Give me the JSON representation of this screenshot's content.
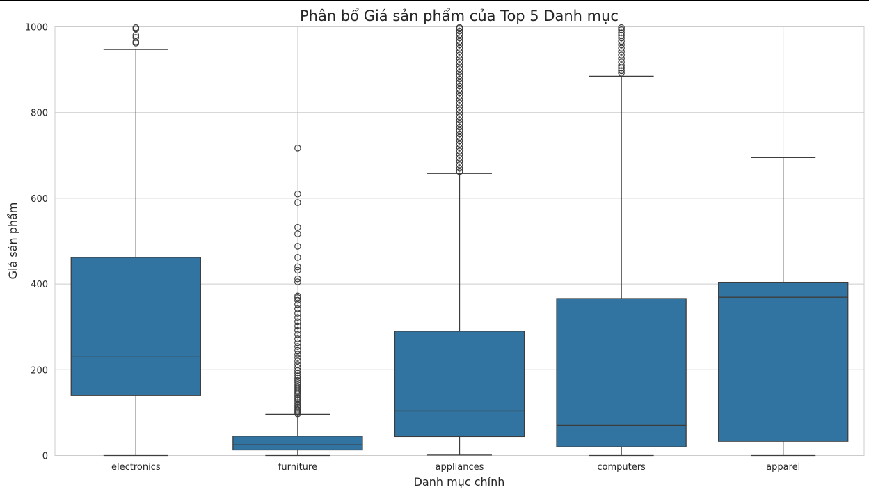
{
  "chart_data": {
    "type": "box",
    "title": "Phân bổ Giá sản phẩm của Top 5 Danh mục",
    "xlabel": "Danh mục chính",
    "ylabel": "Giá sản phẩm",
    "ylim": [
      0,
      1000
    ],
    "yticks": [
      0,
      200,
      400,
      600,
      800,
      1000
    ],
    "grid": true,
    "box_color": "#3274a1",
    "line_color": "#3d3d3d",
    "categories": [
      "electronics",
      "furniture",
      "appliances",
      "computers",
      "apparel"
    ],
    "boxes": [
      {
        "category": "electronics",
        "whisker_low": 0,
        "q1": 140,
        "median": 232,
        "q3": 462,
        "whisker_high": 947,
        "outliers": [
          962,
          965,
          975,
          980,
          995,
          998
        ]
      },
      {
        "category": "furniture",
        "whisker_low": 0,
        "q1": 13,
        "median": 25,
        "q3": 45,
        "whisker_high": 96,
        "outliers": [
          97,
          100,
          103,
          106,
          110,
          113,
          117,
          121,
          125,
          129,
          133,
          137,
          141,
          145,
          150,
          155,
          160,
          165,
          170,
          175,
          180,
          186,
          192,
          198,
          205,
          212,
          220,
          228,
          236,
          245,
          254,
          263,
          272,
          282,
          292,
          302,
          312,
          322,
          332,
          342,
          352,
          362,
          368,
          372,
          405,
          412,
          432,
          440,
          462,
          488,
          517,
          532,
          590,
          610,
          717
        ]
      },
      {
        "category": "appliances",
        "whisker_low": 1,
        "q1": 44,
        "median": 104,
        "q3": 290,
        "whisker_high": 658,
        "outliers": [
          662,
          670,
          678,
          686,
          694,
          702,
          710,
          718,
          726,
          734,
          742,
          750,
          758,
          766,
          774,
          782,
          790,
          798,
          806,
          814,
          822,
          830,
          838,
          846,
          854,
          862,
          870,
          878,
          886,
          894,
          902,
          910,
          918,
          926,
          934,
          942,
          950,
          958,
          966,
          974,
          982,
          990,
          996,
          1000
        ]
      },
      {
        "category": "computers",
        "whisker_low": 0,
        "q1": 20,
        "median": 70,
        "q3": 366,
        "whisker_high": 885,
        "outliers": [
          892,
          898,
          904,
          910,
          918,
          926,
          934,
          942,
          950,
          958,
          966,
          974,
          980,
          986,
          993,
          998
        ]
      },
      {
        "category": "apparel",
        "whisker_low": 0,
        "q1": 33,
        "median": 369,
        "q3": 404,
        "whisker_high": 695,
        "outliers": []
      }
    ]
  }
}
